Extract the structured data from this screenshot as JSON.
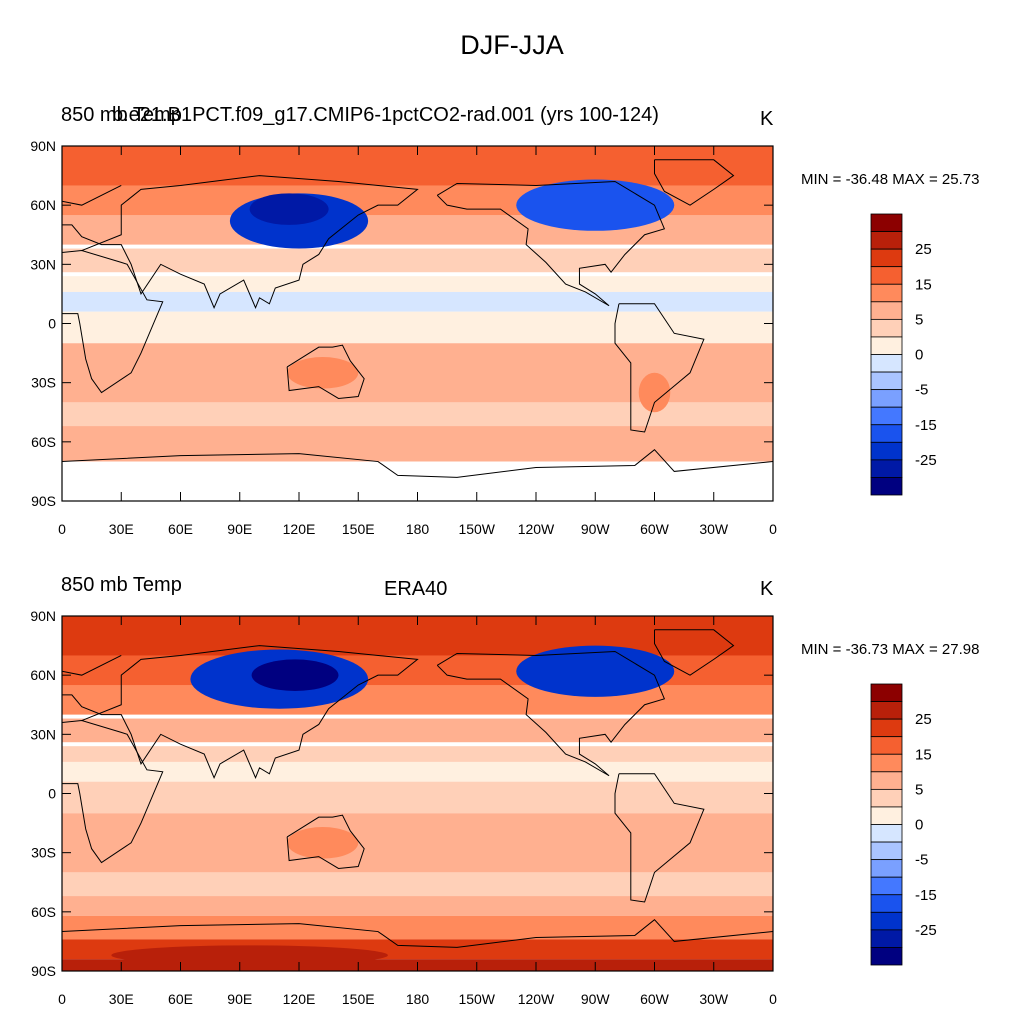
{
  "figure": {
    "title": "DJF-JJA"
  },
  "palette": [
    "#000080",
    "#0019a6",
    "#0033cc",
    "#1a53ee",
    "#4478ff",
    "#7aa0ff",
    "#aac4ff",
    "#d6e6ff",
    "#fff0e0",
    "#ffd0b8",
    "#ffb090",
    "#ff8a5c",
    "#f56030",
    "#dd3a10",
    "#b8200a",
    "#8c0000"
  ],
  "panels": [
    {
      "left_title": "850 mb Temp",
      "center_title": "b.e21.B1PCT.f09_g17.CMIP6-1pctCO2-rad.001 (yrs 100-124)",
      "units": "K",
      "min_max": "MIN = -36.48 MAX =  25.73",
      "colorbar_labels": [
        "25",
        "15",
        "5",
        "0",
        "-5",
        "-15",
        "-25"
      ],
      "lat_labels": [
        "90N",
        "60N",
        "30N",
        "0",
        "30S",
        "60S",
        "90S"
      ],
      "lon_labels": [
        "0",
        "30E",
        "60E",
        "90E",
        "120E",
        "150E",
        "180",
        "150W",
        "120W",
        "90W",
        "60W",
        "30W",
        "0"
      ]
    },
    {
      "left_title": "850 mb Temp",
      "center_title": "ERA40",
      "units": "K",
      "min_max": "MIN = -36.73 MAX =  27.98",
      "colorbar_labels": [
        "25",
        "15",
        "5",
        "0",
        "-5",
        "-15",
        "-25"
      ],
      "lat_labels": [
        "90N",
        "60N",
        "30N",
        "0",
        "30S",
        "60S",
        "90S"
      ],
      "lon_labels": [
        "0",
        "30E",
        "60E",
        "90E",
        "120E",
        "150E",
        "180",
        "150W",
        "120W",
        "90W",
        "60W",
        "30W",
        "0"
      ]
    }
  ]
}
